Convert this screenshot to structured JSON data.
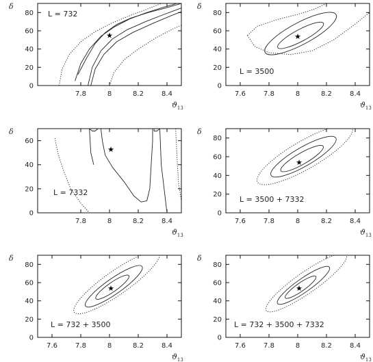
{
  "chart_data": [
    {
      "type": "contour",
      "label": "L = 732",
      "xlabel": "ϑ13",
      "ylabel": "δ",
      "xlim": [
        7.5,
        8.5
      ],
      "ylim": [
        0,
        90
      ],
      "xticks": [
        "7.8",
        "8",
        "8.2",
        "8.4"
      ],
      "yticks": [
        "0",
        "20",
        "40",
        "60",
        "80"
      ],
      "best_fit": {
        "x": 8.0,
        "y": 55
      },
      "contours": [
        {
          "level": "inner",
          "style": "solid",
          "paths": [
            [
              [
                7.78,
                12
              ],
              [
                7.84,
                30
              ],
              [
                7.9,
                46
              ],
              [
                7.97,
                58
              ],
              [
                8.05,
                67
              ],
              [
                8.15,
                74
              ],
              [
                8.27,
                80
              ],
              [
                8.39,
                85
              ],
              [
                8.5,
                90
              ]
            ],
            [
              [
                7.85,
                0
              ],
              [
                7.88,
                20
              ],
              [
                7.94,
                38
              ],
              [
                8.02,
                51
              ],
              [
                8.12,
                61
              ],
              [
                8.25,
                70
              ],
              [
                8.38,
                78
              ],
              [
                8.5,
                85
              ]
            ]
          ]
        },
        {
          "level": "middle",
          "style": "solid",
          "paths": [
            [
              [
                7.76,
                5
              ],
              [
                7.8,
                24
              ],
              [
                7.86,
                40
              ],
              [
                7.94,
                54
              ],
              [
                8.03,
                64
              ],
              [
                8.14,
                73
              ],
              [
                8.26,
                80
              ],
              [
                8.38,
                86
              ],
              [
                8.47,
                90
              ]
            ],
            [
              [
                7.87,
                0
              ],
              [
                7.9,
                18
              ],
              [
                7.96,
                34
              ],
              [
                8.05,
                48
              ],
              [
                8.16,
                58
              ],
              [
                8.3,
                68
              ],
              [
                8.42,
                76
              ],
              [
                8.5,
                81
              ]
            ]
          ]
        },
        {
          "level": "outer",
          "style": "dotted",
          "paths": [
            [
              [
                7.65,
                0
              ],
              [
                7.67,
                18
              ],
              [
                7.72,
                34
              ],
              [
                7.8,
                48
              ],
              [
                7.9,
                59
              ],
              [
                8.01,
                68
              ],
              [
                8.13,
                76
              ],
              [
                8.25,
                83
              ],
              [
                8.36,
                90
              ]
            ],
            [
              [
                8.0,
                0
              ],
              [
                8.03,
                14
              ],
              [
                8.1,
                28
              ],
              [
                8.2,
                40
              ],
              [
                8.32,
                52
              ],
              [
                8.44,
                62
              ],
              [
                8.5,
                66
              ]
            ]
          ]
        }
      ]
    },
    {
      "type": "contour",
      "label": "L = 3500",
      "xlabel": "ϑ13",
      "ylabel": "δ",
      "xlim": [
        7.5,
        8.5
      ],
      "ylim": [
        0,
        90
      ],
      "xticks": [
        "7.6",
        "7.8",
        "8",
        "8.2",
        "8.4"
      ],
      "yticks": [
        "0",
        "20",
        "40",
        "60",
        "80"
      ],
      "best_fit": {
        "x": 8.0,
        "y": 54
      },
      "contours": [
        {
          "level": "inner",
          "style": "solid",
          "ellipse": {
            "cx": 8.02,
            "cy": 55,
            "rx": 0.18,
            "ry": 6.5,
            "tilt": 28
          }
        },
        {
          "level": "middle",
          "style": "solid",
          "ellipse": {
            "cx": 8.02,
            "cy": 57,
            "rx": 0.28,
            "ry": 12,
            "tilt": 28
          }
        },
        {
          "level": "outer",
          "style": "dotted",
          "paths": [
            [
              [
                7.65,
                55
              ],
              [
                7.7,
                43
              ],
              [
                7.8,
                36
              ],
              [
                7.95,
                34
              ],
              [
                8.1,
                38
              ],
              [
                8.25,
                50
              ],
              [
                8.38,
                65
              ],
              [
                8.5,
                80
              ]
            ],
            [
              [
                7.65,
                55
              ],
              [
                7.72,
                65
              ],
              [
                7.85,
                72
              ],
              [
                8.0,
                78
              ],
              [
                8.12,
                84
              ],
              [
                8.2,
                90
              ]
            ]
          ]
        }
      ]
    },
    {
      "type": "contour",
      "label": "L = 7332",
      "xlabel": "ϑ13",
      "ylabel": "δ",
      "xlim": [
        7.5,
        8.5
      ],
      "ylim": [
        0,
        70
      ],
      "xticks": [
        "7.8",
        "8",
        "8.2",
        "8.4"
      ],
      "yticks": [
        "0",
        "20",
        "40",
        "60"
      ],
      "best_fit": {
        "x": 8.01,
        "y": 53
      },
      "contours": [
        {
          "level": "inner",
          "style": "solid",
          "paths": [
            [
              [
                7.94,
                70
              ],
              [
                7.95,
                60
              ],
              [
                7.97,
                48
              ],
              [
                8.02,
                38
              ],
              [
                8.1,
                26
              ],
              [
                8.17,
                14
              ],
              [
                8.22,
                9
              ],
              [
                8.26,
                10
              ],
              [
                8.28,
                20
              ],
              [
                8.29,
                40
              ],
              [
                8.3,
                60
              ],
              [
                8.3,
                70
              ]
            ]
          ]
        },
        {
          "level": "middle",
          "style": "solid",
          "paths": [
            [
              [
                7.86,
                70
              ],
              [
                7.88,
                68
              ],
              [
                7.9,
                68
              ],
              [
                7.92,
                70
              ]
            ],
            [
              [
                8.31,
                70
              ],
              [
                8.31,
                68
              ],
              [
                8.33,
                68
              ],
              [
                8.35,
                70
              ]
            ],
            [
              [
                7.86,
                70
              ],
              [
                7.87,
                50
              ],
              [
                7.89,
                40
              ]
            ],
            [
              [
                8.35,
                70
              ],
              [
                8.36,
                40
              ],
              [
                8.38,
                20
              ],
              [
                8.4,
                0
              ]
            ]
          ]
        },
        {
          "level": "outer",
          "style": "dotted",
          "paths": [
            [
              [
                7.62,
                62
              ],
              [
                7.64,
                50
              ],
              [
                7.68,
                35
              ],
              [
                7.73,
                20
              ],
              [
                7.8,
                8
              ],
              [
                7.86,
                0
              ]
            ],
            [
              [
                8.46,
                70
              ],
              [
                8.47,
                45
              ],
              [
                8.48,
                25
              ],
              [
                8.5,
                10
              ]
            ]
          ]
        }
      ]
    },
    {
      "type": "contour",
      "label": "L = 3500 + 7332",
      "xlabel": "ϑ13",
      "ylabel": "δ",
      "xlim": [
        7.5,
        8.5
      ],
      "ylim": [
        0,
        90
      ],
      "xticks": [
        "7.6",
        "7.8",
        "8",
        "8.2",
        "8.4"
      ],
      "yticks": [
        "0",
        "20",
        "40",
        "60",
        "80"
      ],
      "best_fit": {
        "x": 8.01,
        "y": 54
      },
      "contours": [
        {
          "level": "inner",
          "style": "solid",
          "ellipse": {
            "cx": 8.03,
            "cy": 58,
            "rx": 0.17,
            "ry": 6,
            "tilt": 30
          }
        },
        {
          "level": "middle",
          "style": "solid",
          "ellipse": {
            "cx": 8.04,
            "cy": 60,
            "rx": 0.26,
            "ry": 10,
            "tilt": 30
          }
        },
        {
          "level": "outer",
          "style": "dotted",
          "ellipse": {
            "cx": 8.05,
            "cy": 62,
            "rx": 0.38,
            "ry": 15,
            "tilt": 30
          }
        }
      ]
    },
    {
      "type": "contour",
      "label": "L = 732 + 3500",
      "xlabel": "ϑ13",
      "ylabel": "δ",
      "xlim": [
        7.5,
        8.5
      ],
      "ylim": [
        0,
        90
      ],
      "xticks": [
        "7.6",
        "7.8",
        "8",
        "8.2",
        "8.4"
      ],
      "yticks": [
        "0",
        "20",
        "40",
        "60",
        "80"
      ],
      "best_fit": {
        "x": 8.01,
        "y": 54
      },
      "contours": [
        {
          "level": "inner",
          "style": "solid",
          "ellipse": {
            "cx": 8.02,
            "cy": 55,
            "rx": 0.14,
            "ry": 5,
            "tilt": 35
          }
        },
        {
          "level": "middle",
          "style": "solid",
          "ellipse": {
            "cx": 8.03,
            "cy": 56,
            "rx": 0.24,
            "ry": 8.5,
            "tilt": 35
          }
        },
        {
          "level": "outer",
          "style": "dotted",
          "ellipse": {
            "cx": 8.05,
            "cy": 60,
            "rx": 0.36,
            "ry": 13,
            "tilt": 35
          }
        }
      ]
    },
    {
      "type": "contour",
      "label": "L = 732 + 3500 + 7332",
      "xlabel": "ϑ13",
      "ylabel": "δ",
      "xlim": [
        7.5,
        8.5
      ],
      "ylim": [
        0,
        90
      ],
      "xticks": [
        "7.6",
        "7.8",
        "8",
        "8.2",
        "8.4"
      ],
      "yticks": [
        "0",
        "20",
        "40",
        "60",
        "80"
      ],
      "best_fit": {
        "x": 8.01,
        "y": 54
      },
      "contours": [
        {
          "level": "inner",
          "style": "solid",
          "ellipse": {
            "cx": 8.02,
            "cy": 55,
            "rx": 0.13,
            "ry": 4.5,
            "tilt": 35
          }
        },
        {
          "level": "middle",
          "style": "solid",
          "ellipse": {
            "cx": 8.04,
            "cy": 57,
            "rx": 0.22,
            "ry": 7.5,
            "tilt": 35
          }
        },
        {
          "level": "outer",
          "style": "dotted",
          "ellipse": {
            "cx": 8.06,
            "cy": 60,
            "rx": 0.34,
            "ry": 11.5,
            "tilt": 35
          }
        }
      ]
    }
  ]
}
